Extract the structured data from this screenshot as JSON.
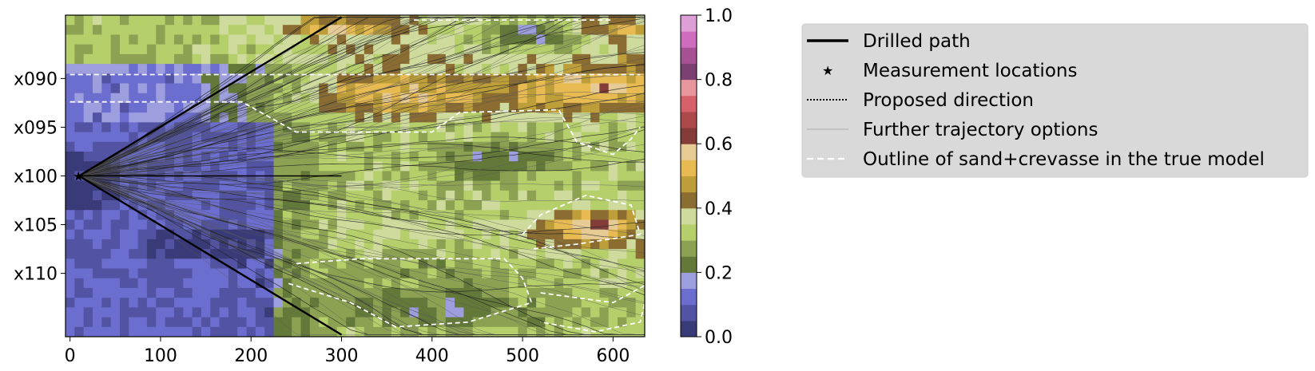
{
  "chart_data": {
    "type": "heatmap",
    "title": "",
    "xlabel": "",
    "ylabel": "",
    "x_ticks": [
      "0",
      "100",
      "200",
      "300",
      "400",
      "500",
      "600"
    ],
    "x_tick_values": [
      0,
      100,
      200,
      300,
      400,
      500,
      600
    ],
    "xlim": [
      -5,
      635
    ],
    "y_ticks": [
      "x090",
      "x095",
      "x100",
      "x105",
      "x110"
    ],
    "y_tick_values": [
      90,
      95,
      100,
      105,
      110
    ],
    "ylim": [
      116.5,
      83.5
    ],
    "colorbar": {
      "ticks": [
        "0.0",
        "0.2",
        "0.4",
        "0.6",
        "0.8",
        "1.0"
      ],
      "tick_values": [
        0.0,
        0.2,
        0.4,
        0.6,
        0.8,
        1.0
      ],
      "range": [
        0.0,
        1.0
      ],
      "colormap": [
        "#393b79",
        "#5254a3",
        "#6b6ecf",
        "#9c9ede",
        "#637939",
        "#8ca252",
        "#b5cf6b",
        "#cedb9c",
        "#8c6d31",
        "#bd9e39",
        "#e7ba52",
        "#e7cb94",
        "#843c39",
        "#ad494a",
        "#d6616b",
        "#e7969c",
        "#7b4173",
        "#a55194",
        "#ce6dbd",
        "#de9ed6"
      ]
    },
    "start_point": {
      "x": 10,
      "y": 100
    },
    "drilled_path": [
      [
        10,
        100
      ],
      [
        300,
        100
      ]
    ],
    "proposed_directions": [
      [
        [
          10,
          100
        ],
        [
          300,
          83.7
        ]
      ],
      [
        [
          10,
          100
        ],
        [
          300,
          116.3
        ]
      ]
    ],
    "sand_crevasse_outlines": [
      [
        [
          0,
          89.6
        ],
        [
          300,
          89.6
        ],
        [
          630,
          89.6
        ]
      ],
      [
        [
          0,
          92.4
        ],
        [
          190,
          92.4
        ],
        [
          250,
          95.5
        ],
        [
          400,
          95.5
        ],
        [
          430,
          93.5
        ],
        [
          540,
          93.2
        ],
        [
          560,
          96.5
        ],
        [
          600,
          97.8
        ],
        [
          620,
          96.2
        ],
        [
          630,
          95.0
        ]
      ],
      [
        [
          250,
          109
        ],
        [
          320,
          108.5
        ],
        [
          480,
          108.5
        ],
        [
          500,
          110.5
        ],
        [
          510,
          113
        ],
        [
          440,
          115
        ],
        [
          360,
          115.5
        ],
        [
          310,
          113
        ],
        [
          240,
          111
        ]
      ],
      [
        [
          500,
          106
        ],
        [
          520,
          104
        ],
        [
          570,
          102
        ],
        [
          620,
          103
        ],
        [
          630,
          106
        ],
        [
          560,
          107
        ],
        [
          510,
          107.5
        ]
      ],
      [
        [
          520,
          112
        ],
        [
          600,
          113
        ],
        [
          640,
          111
        ],
        [
          630,
          115
        ],
        [
          580,
          116
        ],
        [
          520,
          115
        ]
      ],
      [
        [
          380,
          84
        ],
        [
          600,
          84
        ]
      ]
    ],
    "legend": {
      "placement": "right",
      "entries": [
        {
          "label": "Drilled path",
          "style": "solid-thick",
          "color": "#000000"
        },
        {
          "label": "Measurement locations",
          "style": "star-marker",
          "color": "#000000"
        },
        {
          "label": "Proposed direction",
          "style": "dotted",
          "color": "#000000"
        },
        {
          "label": "Further trajectory options",
          "style": "thin-solid",
          "color": "#aaaaaa"
        },
        {
          "label": "Outline of sand+crevasse in the true model",
          "style": "dashed",
          "color": "#ffffff"
        }
      ]
    }
  }
}
